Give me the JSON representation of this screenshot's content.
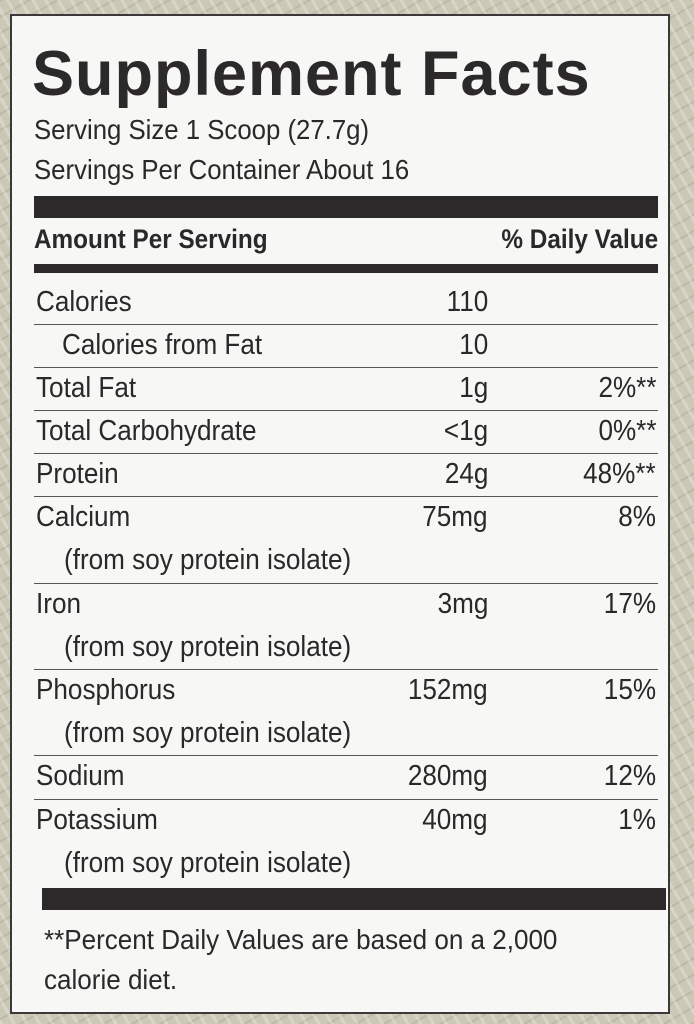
{
  "title": "Supplement Facts",
  "serving_size": "Serving Size 1 Scoop (27.7g)",
  "servings_per_container": "Servings Per Container About 16",
  "header": {
    "amount": "Amount Per Serving",
    "dv": "% Daily Value"
  },
  "rows": [
    {
      "name": "Calories",
      "amount": "110",
      "dv": ""
    },
    {
      "name": "Calories from Fat",
      "amount": "10",
      "dv": ""
    },
    {
      "name": "Total Fat",
      "amount": "1g",
      "dv": "2%**"
    },
    {
      "name": "Total Carbohydrate",
      "amount": "<1g",
      "dv": "0%**"
    },
    {
      "name": "Protein",
      "amount": "24g",
      "dv": "48%**"
    },
    {
      "name": "Calcium",
      "amount": "75mg",
      "dv": "8%",
      "source": "(from soy protein isolate)"
    },
    {
      "name": "Iron",
      "amount": "3mg",
      "dv": "17%",
      "source": "(from soy protein isolate)"
    },
    {
      "name": "Phosphorus",
      "amount": "152mg",
      "dv": "15%",
      "source": "(from soy protein isolate)"
    },
    {
      "name": "Sodium",
      "amount": "280mg",
      "dv": "12%"
    },
    {
      "name": "Potassium",
      "amount": "40mg",
      "dv": "1%",
      "source": "(from soy protein isolate)"
    }
  ],
  "footnote": [
    "**Percent Daily Values are based on a 2,000",
    "calorie diet."
  ]
}
